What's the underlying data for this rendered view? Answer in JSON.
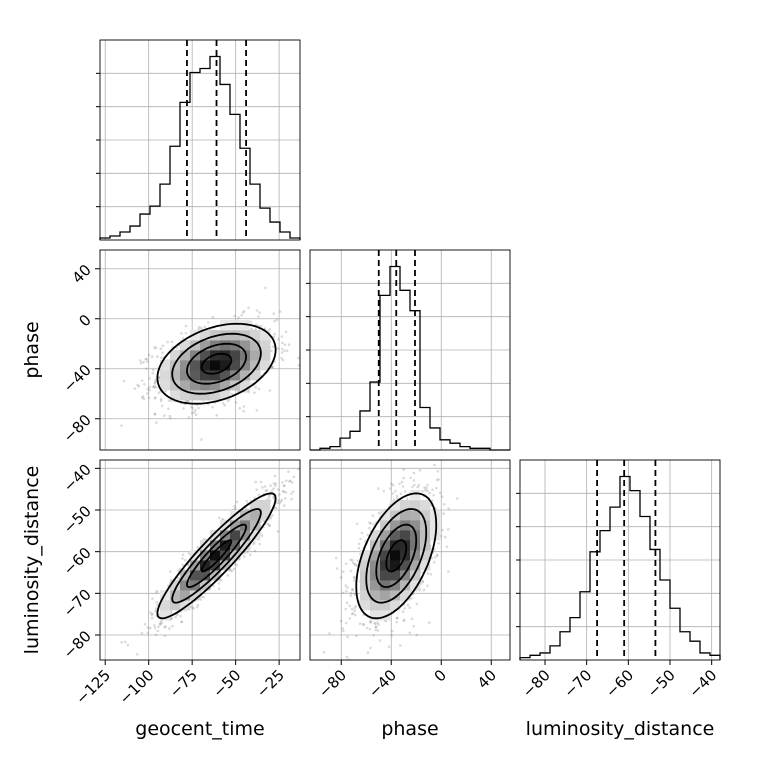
{
  "chart_data": {
    "type": "corner",
    "parameters": [
      "geocent_time",
      "phase",
      "luminosity_distance"
    ],
    "labels": {
      "geocent_time": "geocent_time",
      "phase": "phase",
      "luminosity_distance": "luminosity_distance"
    },
    "grid": true,
    "ranges": {
      "geocent_time": [
        -128,
        -13
      ],
      "phase": [
        -105,
        55
      ],
      "luminosity_distance": [
        -86,
        -38
      ]
    },
    "ticks": {
      "geocent_time": [
        -125,
        -100,
        -75,
        -50,
        -25
      ],
      "phase": [
        -80,
        -40,
        0,
        40
      ],
      "luminosity_distance": [
        -80,
        -70,
        -60,
        -50,
        -40
      ]
    },
    "tick_labels": {
      "geocent_time": [
        "−125",
        "−100",
        "−75",
        "−50",
        "−25"
      ],
      "phase": [
        "−80",
        "−40",
        "0",
        "40"
      ],
      "luminosity_distance": [
        "−80",
        "−70",
        "−60",
        "−50",
        "−40"
      ]
    },
    "quantiles": {
      "geocent_time": [
        -78,
        -61,
        -44
      ],
      "phase": [
        -50,
        -36,
        -21
      ],
      "luminosity_distance": [
        -67.5,
        -61,
        -53.5
      ]
    },
    "marginals": {
      "geocent_time": {
        "bin_edges": [
          -128,
          -122.25,
          -116.5,
          -110.75,
          -105,
          -99.25,
          -93.5,
          -87.75,
          -82,
          -76.25,
          -70.5,
          -64.75,
          -59,
          -53.25,
          -47.5,
          -41.75,
          -36,
          -30.25,
          -24.5,
          -18.75,
          -13
        ],
        "counts": [
          1,
          2,
          4,
          7,
          13,
          17,
          28,
          47,
          69,
          84,
          86,
          92,
          78,
          63,
          46,
          28,
          16,
          9,
          4,
          1
        ]
      },
      "phase": {
        "bin_edges": [
          -105,
          -97,
          -89,
          -81,
          -73,
          -65,
          -57,
          -49,
          -41,
          -33,
          -25,
          -17,
          -9,
          -1,
          7,
          15,
          23,
          31,
          39,
          47,
          55
        ],
        "counts": [
          0,
          1,
          2,
          7,
          11,
          23,
          40,
          91,
          108,
          94,
          82,
          25,
          13,
          6,
          4,
          2,
          1,
          1,
          0,
          0
        ]
      },
      "luminosity_distance": {
        "bin_edges": [
          -86,
          -83.6,
          -81.2,
          -78.8,
          -76.4,
          -74,
          -71.6,
          -69.2,
          -66.8,
          -64.4,
          -62,
          -59.6,
          -57.2,
          -54.8,
          -52.4,
          -50,
          -47.6,
          -45.2,
          -42.8,
          -40.4,
          -38
        ],
        "counts": [
          1,
          2,
          3,
          6,
          12,
          18,
          29,
          46,
          55,
          65,
          78,
          72,
          61,
          47,
          34,
          22,
          12,
          8,
          3,
          2
        ]
      }
    },
    "pairs": [
      {
        "x": "geocent_time",
        "y": "phase",
        "mean": [
          -61,
          -36
        ],
        "sd": [
          17,
          16
        ],
        "correlation": 0.35
      },
      {
        "x": "geocent_time",
        "y": "luminosity_distance",
        "mean": [
          -61,
          -61
        ],
        "sd": [
          17,
          7.5
        ],
        "correlation": 0.92
      },
      {
        "x": "phase",
        "y": "luminosity_distance",
        "mean": [
          -36,
          -61
        ],
        "sd": [
          16,
          7.5
        ],
        "correlation": 0.5
      }
    ]
  }
}
